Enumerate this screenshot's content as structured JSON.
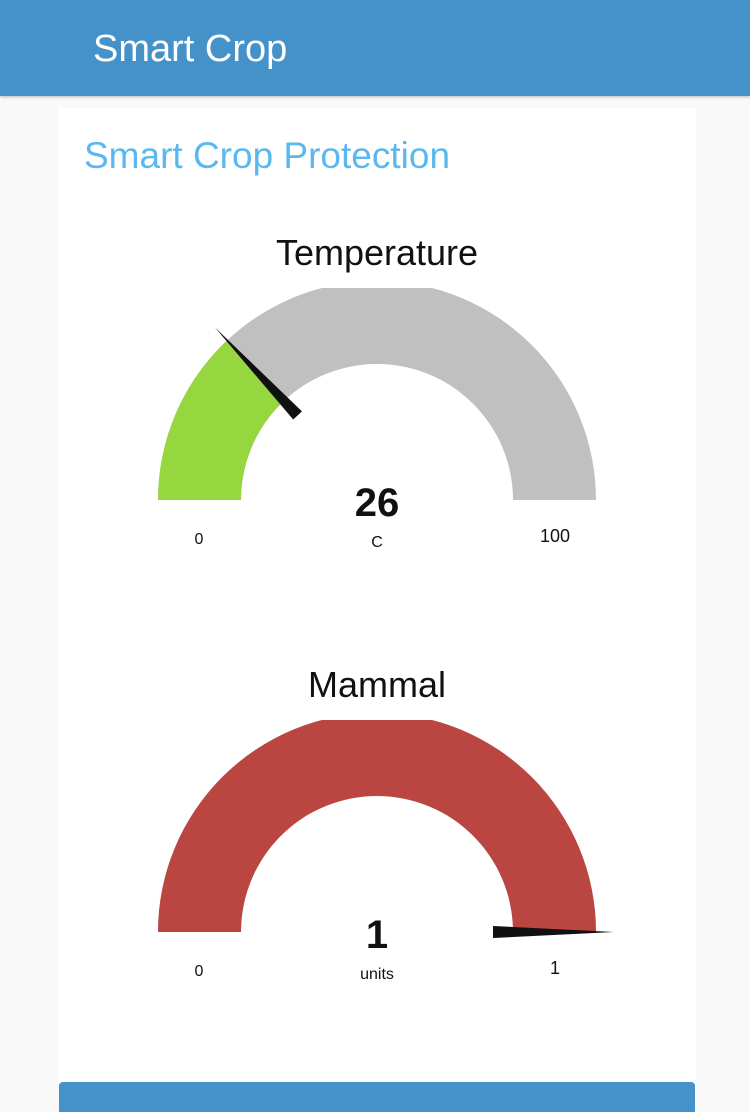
{
  "header": {
    "title": "Smart Crop"
  },
  "group": {
    "title": "Smart Crop Protection"
  },
  "gauges": [
    {
      "title": "Temperature",
      "value": 26,
      "value_text": "26",
      "min": 0,
      "max": 100,
      "min_label": "0",
      "max_label": "100",
      "units": "C",
      "fill_color": "#96d63e",
      "track_color": "#c0c0c0",
      "needle_color": "#111111"
    },
    {
      "title": "Mammal",
      "value": 1,
      "value_text": "1",
      "min": 0,
      "max": 1,
      "min_label": "0",
      "max_label": "1",
      "units": "units",
      "fill_color": "#bb4641",
      "track_color": "#c0c0c0",
      "needle_color": "#111111"
    }
  ]
}
